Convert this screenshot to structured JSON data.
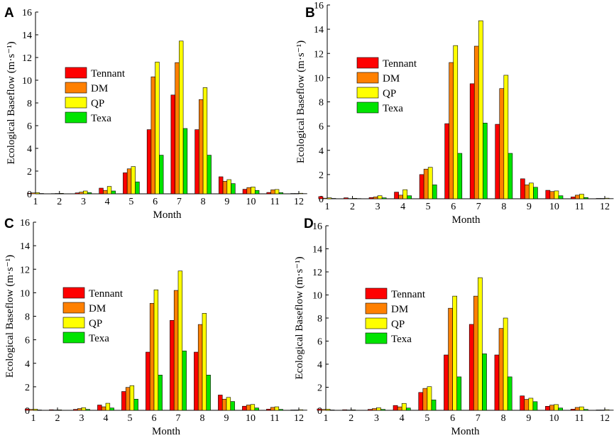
{
  "colors": {
    "Tennant": "#ff0000",
    "DM": "#ff8000",
    "QP": "#ffff00",
    "Texa": "#00e400"
  },
  "chart_data": [
    {
      "type": "bar",
      "panel": "A",
      "xlabel": "Month",
      "ylabel": "Ecological Baseflow (m·s⁻¹)",
      "ylim": [
        0,
        16
      ],
      "yticks": [
        0,
        2,
        4,
        6,
        8,
        10,
        12,
        14,
        16
      ],
      "categories": [
        "1",
        "2",
        "3",
        "4",
        "5",
        "6",
        "7",
        "8",
        "9",
        "10",
        "11",
        "12"
      ],
      "legend_position": "upper-left",
      "series": [
        {
          "name": "Tennant",
          "values": [
            0.05,
            0.02,
            0.08,
            0.5,
            1.85,
            5.65,
            8.7,
            5.65,
            1.5,
            0.4,
            0.12,
            0.03
          ]
        },
        {
          "name": "DM",
          "values": [
            0.08,
            0.03,
            0.15,
            0.3,
            2.2,
            10.3,
            11.55,
            8.3,
            1.1,
            0.55,
            0.35,
            0.03
          ]
        },
        {
          "name": "QP",
          "values": [
            0.1,
            0.04,
            0.25,
            0.65,
            2.4,
            11.6,
            13.45,
            9.35,
            1.25,
            0.6,
            0.38,
            0.05
          ]
        },
        {
          "name": "Texa",
          "values": [
            0.03,
            0.01,
            0.1,
            0.25,
            1.05,
            3.4,
            5.75,
            3.4,
            0.9,
            0.3,
            0.1,
            0.02
          ]
        }
      ]
    },
    {
      "type": "bar",
      "panel": "B",
      "xlabel": "Month",
      "ylabel": "Ecological Baseflow (m·s⁻¹)",
      "ylim": [
        0,
        16
      ],
      "yticks": [
        0,
        2,
        4,
        6,
        8,
        10,
        12,
        14,
        16
      ],
      "categories": [
        "1",
        "2",
        "3",
        "4",
        "5",
        "6",
        "7",
        "8",
        "9",
        "10",
        "11",
        "12"
      ],
      "legend_position": "upper-left",
      "series": [
        {
          "name": "Tennant",
          "values": [
            0.18,
            0.08,
            0.1,
            0.55,
            2.0,
            6.2,
            9.5,
            6.15,
            1.65,
            0.7,
            0.15,
            0.03
          ]
        },
        {
          "name": "DM",
          "values": [
            0.05,
            0.02,
            0.15,
            0.3,
            2.45,
            11.25,
            12.6,
            9.1,
            1.15,
            0.6,
            0.3,
            0.03
          ]
        },
        {
          "name": "QP",
          "values": [
            0.08,
            0.04,
            0.25,
            0.75,
            2.6,
            12.65,
            14.7,
            10.2,
            1.3,
            0.65,
            0.38,
            0.05
          ]
        },
        {
          "name": "Texa",
          "values": [
            0.03,
            0.02,
            0.08,
            0.25,
            1.15,
            3.75,
            6.25,
            3.75,
            0.95,
            0.25,
            0.1,
            0.02
          ]
        }
      ]
    },
    {
      "type": "bar",
      "panel": "C",
      "xlabel": "Month",
      "ylabel": "Ecological Baseflow (m·s⁻¹)",
      "ylim": [
        0,
        16
      ],
      "yticks": [
        0,
        2,
        4,
        6,
        8,
        10,
        12,
        14,
        16
      ],
      "categories": [
        "1",
        "2",
        "3",
        "4",
        "5",
        "6",
        "7",
        "8",
        "9",
        "10",
        "11",
        "12"
      ],
      "legend_position": "upper-left",
      "series": [
        {
          "name": "Tennant",
          "values": [
            0.12,
            0.05,
            0.08,
            0.45,
            1.6,
            4.95,
            7.65,
            4.95,
            1.3,
            0.35,
            0.1,
            0.03
          ]
        },
        {
          "name": "DM",
          "values": [
            0.08,
            0.03,
            0.15,
            0.3,
            1.95,
            9.1,
            10.2,
            7.3,
            0.95,
            0.45,
            0.25,
            0.03
          ]
        },
        {
          "name": "QP",
          "values": [
            0.1,
            0.04,
            0.22,
            0.6,
            2.1,
            10.25,
            11.85,
            8.25,
            1.1,
            0.5,
            0.3,
            0.05
          ]
        },
        {
          "name": "Texa",
          "values": [
            0.03,
            0.01,
            0.08,
            0.2,
            0.95,
            3.0,
            5.05,
            3.0,
            0.75,
            0.2,
            0.08,
            0.02
          ]
        }
      ]
    },
    {
      "type": "bar",
      "panel": "D",
      "xlabel": "Month",
      "ylabel": "Ecological Baseflow (m·s⁻¹)",
      "ylim": [
        0,
        16
      ],
      "yticks": [
        0,
        2,
        4,
        6,
        8,
        10,
        12,
        14,
        16
      ],
      "categories": [
        "1",
        "2",
        "3",
        "4",
        "5",
        "6",
        "7",
        "8",
        "9",
        "10",
        "11",
        "12"
      ],
      "legend_position": "upper-left",
      "series": [
        {
          "name": "Tennant",
          "values": [
            0.12,
            0.05,
            0.08,
            0.42,
            1.55,
            4.8,
            7.45,
            4.8,
            1.25,
            0.35,
            0.1,
            0.03
          ]
        },
        {
          "name": "DM",
          "values": [
            0.08,
            0.03,
            0.15,
            0.3,
            1.9,
            8.85,
            9.9,
            7.1,
            0.95,
            0.45,
            0.25,
            0.03
          ]
        },
        {
          "name": "QP",
          "values": [
            0.1,
            0.04,
            0.22,
            0.6,
            2.05,
            9.9,
            11.5,
            8.0,
            1.05,
            0.5,
            0.3,
            0.05
          ]
        },
        {
          "name": "Texa",
          "values": [
            0.03,
            0.01,
            0.08,
            0.2,
            0.9,
            2.9,
            4.9,
            2.9,
            0.75,
            0.2,
            0.08,
            0.02
          ]
        }
      ]
    }
  ]
}
